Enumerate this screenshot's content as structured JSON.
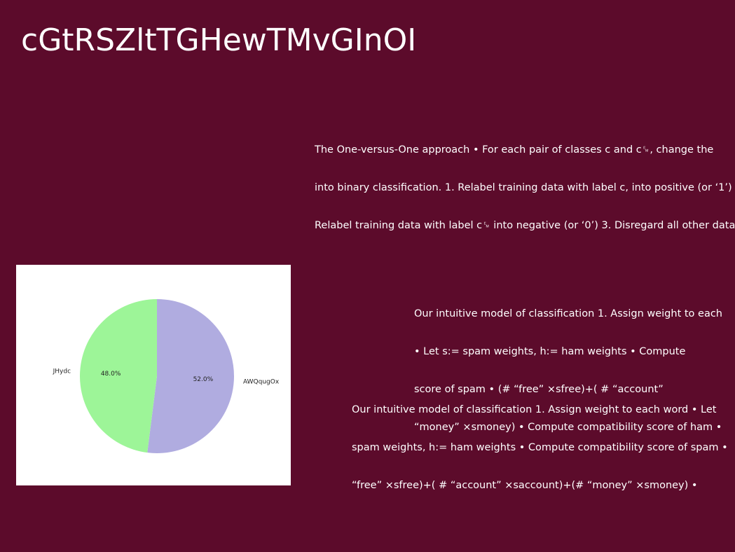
{
  "slide": {
    "title": "cGtRSZltTGHewTMvGInOI"
  },
  "paragraphs": {
    "p1": [
      "The One-versus-One approach • For each pair of classes c and c␙, change the",
      "into binary classification. 1. Relabel training data with label c, into positive (or ‘1’)",
      "Relabel training data with label c␙ into negative (or ‘0’) 3. Disregard all other data"
    ],
    "p2": [
      "Our intuitive model of classification 1. Assign weight to each",
      "• Let s:= spam weights, h:= ham weights • Compute",
      "score of spam • (# “free” ×sfree)+( # “account”",
      "“money” ×smoney) • Compute compatibility score of ham •"
    ],
    "p3": [
      "Our intuitive model of classification 1. Assign weight to each word • Let",
      "spam weights, h:= ham weights • Compute compatibility score of spam •",
      "“free” ×sfree)+( # “account” ×saccount)+(# “money” ×smoney) •"
    ]
  },
  "colors": {
    "background": "#5c0b2b",
    "text": "#ffffff",
    "slice_1": "#b0ace0",
    "slice_2": "#9df598"
  },
  "chart_data": {
    "type": "pie",
    "labels": [
      "AWQqugOx",
      "JHydc"
    ],
    "values": [
      52.0,
      48.0
    ],
    "value_labels": [
      "52.0%",
      "48.0%"
    ],
    "colors": [
      "#b0ace0",
      "#9df598"
    ],
    "start_angle_deg": 90,
    "direction": "clockwise",
    "legend": "none"
  }
}
